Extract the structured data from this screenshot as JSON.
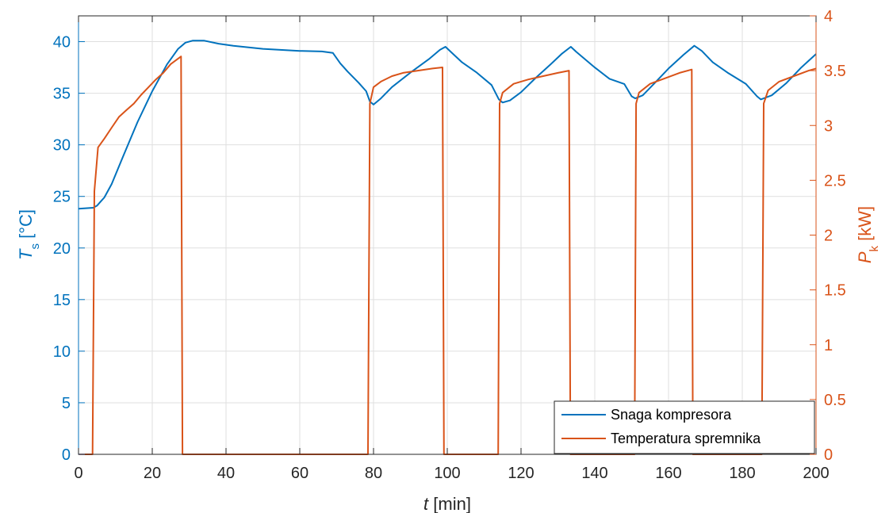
{
  "chart_data": {
    "type": "line",
    "x": {
      "label_main": "t",
      "label_unit": "[min]",
      "lim": [
        0,
        200
      ],
      "ticks": [
        0,
        20,
        40,
        60,
        80,
        100,
        120,
        140,
        160,
        180,
        200
      ],
      "tick_labels": [
        "0",
        "20",
        "40",
        "60",
        "80",
        "100",
        "120",
        "140",
        "160",
        "180",
        "200"
      ]
    },
    "y_left": {
      "label_main": "T",
      "label_sub": "s",
      "label_unit": "[°C]",
      "lim": [
        0,
        42.5
      ],
      "ticks": [
        0,
        5,
        10,
        15,
        20,
        25,
        30,
        35,
        40
      ],
      "tick_labels": [
        "0",
        "5",
        "10",
        "15",
        "20",
        "25",
        "30",
        "35",
        "40"
      ],
      "color": "#0072BD"
    },
    "y_right": {
      "label_main": "P",
      "label_sub": "k",
      "label_unit": "[kW]",
      "lim": [
        0,
        4
      ],
      "ticks": [
        0,
        0.5,
        1,
        1.5,
        2,
        2.5,
        3,
        3.5,
        4
      ],
      "tick_labels": [
        "0",
        "0.5",
        "1",
        "1.5",
        "2",
        "2.5",
        "3",
        "3.5",
        "4"
      ],
      "color": "#D95319"
    },
    "grid": true,
    "legend_position": "bottom-right",
    "series": [
      {
        "name": "Snaga kompresora",
        "axis": "left",
        "color": "#0072BD",
        "points": [
          [
            0,
            23.8
          ],
          [
            4,
            23.9
          ],
          [
            5,
            24.1
          ],
          [
            7,
            24.9
          ],
          [
            9,
            26.2
          ],
          [
            12,
            28.8
          ],
          [
            16,
            32.2
          ],
          [
            20,
            35.2
          ],
          [
            24,
            37.8
          ],
          [
            27,
            39.3
          ],
          [
            29,
            39.9
          ],
          [
            31,
            40.1
          ],
          [
            34,
            40.1
          ],
          [
            38,
            39.8
          ],
          [
            42,
            39.6
          ],
          [
            50,
            39.3
          ],
          [
            60,
            39.1
          ],
          [
            66,
            39.05
          ],
          [
            69,
            38.9
          ],
          [
            71,
            37.9
          ],
          [
            73,
            37.1
          ],
          [
            76,
            36.0
          ],
          [
            78,
            35.2
          ],
          [
            79,
            34.2
          ],
          [
            80,
            33.9
          ],
          [
            82,
            34.5
          ],
          [
            85,
            35.6
          ],
          [
            90,
            37.0
          ],
          [
            95,
            38.3
          ],
          [
            98,
            39.2
          ],
          [
            99.5,
            39.5
          ],
          [
            101,
            39.0
          ],
          [
            104,
            38.0
          ],
          [
            108,
            37.0
          ],
          [
            112,
            35.8
          ],
          [
            114,
            34.4
          ],
          [
            115,
            34.1
          ],
          [
            117,
            34.3
          ],
          [
            120,
            35.1
          ],
          [
            124,
            36.5
          ],
          [
            128,
            37.8
          ],
          [
            131,
            38.8
          ],
          [
            133.5,
            39.5
          ],
          [
            135,
            39.0
          ],
          [
            140,
            37.5
          ],
          [
            144,
            36.4
          ],
          [
            148,
            35.9
          ],
          [
            150,
            34.7
          ],
          [
            151,
            34.5
          ],
          [
            153,
            34.8
          ],
          [
            156,
            35.9
          ],
          [
            160,
            37.4
          ],
          [
            164,
            38.7
          ],
          [
            167,
            39.6
          ],
          [
            169,
            39.1
          ],
          [
            172,
            38.0
          ],
          [
            176,
            37.0
          ],
          [
            181,
            35.9
          ],
          [
            184,
            34.7
          ],
          [
            185,
            34.4
          ],
          [
            188,
            34.8
          ],
          [
            192,
            36.0
          ],
          [
            196,
            37.5
          ],
          [
            200,
            38.8
          ]
        ]
      },
      {
        "name": "Temperatura spremnika",
        "axis": "right",
        "color": "#D95319",
        "points": [
          [
            0,
            0
          ],
          [
            3.8,
            0
          ],
          [
            4.3,
            2.4
          ],
          [
            5.3,
            2.8
          ],
          [
            7,
            2.88
          ],
          [
            9,
            2.98
          ],
          [
            11,
            3.08
          ],
          [
            13,
            3.14
          ],
          [
            15,
            3.2
          ],
          [
            17,
            3.28
          ],
          [
            19,
            3.35
          ],
          [
            21,
            3.42
          ],
          [
            23,
            3.48
          ],
          [
            25,
            3.56
          ],
          [
            27,
            3.61
          ],
          [
            27.8,
            3.63
          ],
          [
            28.2,
            0
          ],
          [
            78.5,
            0
          ],
          [
            79,
            3.2
          ],
          [
            80,
            3.35
          ],
          [
            82,
            3.4
          ],
          [
            85,
            3.45
          ],
          [
            88,
            3.48
          ],
          [
            92,
            3.5
          ],
          [
            96,
            3.52
          ],
          [
            98.7,
            3.53
          ],
          [
            99.1,
            0
          ],
          [
            113.8,
            0
          ],
          [
            114.2,
            3.2
          ],
          [
            115,
            3.3
          ],
          [
            118,
            3.38
          ],
          [
            122,
            3.42
          ],
          [
            126,
            3.45
          ],
          [
            130,
            3.48
          ],
          [
            133,
            3.5
          ],
          [
            133.4,
            0
          ],
          [
            150.8,
            0
          ],
          [
            151.2,
            3.2
          ],
          [
            152,
            3.3
          ],
          [
            155,
            3.38
          ],
          [
            159,
            3.43
          ],
          [
            163,
            3.48
          ],
          [
            166.3,
            3.51
          ],
          [
            166.6,
            0
          ],
          [
            185.3,
            0
          ],
          [
            185.8,
            3.2
          ],
          [
            187,
            3.32
          ],
          [
            190,
            3.4
          ],
          [
            194,
            3.45
          ],
          [
            198,
            3.5
          ],
          [
            200,
            3.52
          ]
        ]
      }
    ]
  }
}
